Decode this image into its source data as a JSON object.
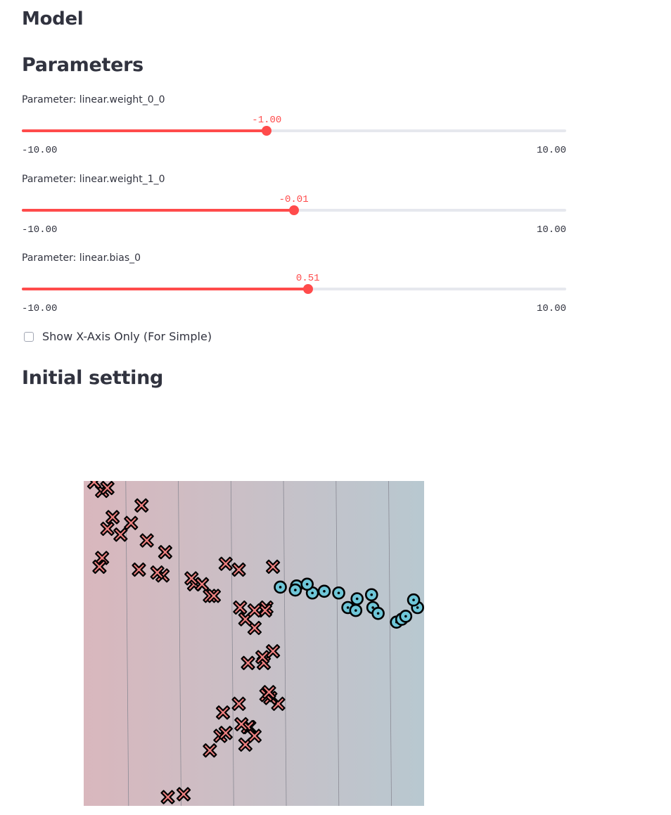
{
  "headings": {
    "model": "Model",
    "parameters": "Parameters",
    "initial_setting": "Initial setting"
  },
  "sliders": [
    {
      "label": "Parameter: linear.weight_0_0",
      "value": -1.0,
      "value_text": "-1.00",
      "min": -10.0,
      "min_text": "-10.00",
      "max": 10.0,
      "max_text": "10.00"
    },
    {
      "label": "Parameter: linear.weight_1_0",
      "value": -0.01,
      "value_text": "-0.01",
      "min": -10.0,
      "min_text": "-10.00",
      "max": 10.0,
      "max_text": "10.00"
    },
    {
      "label": "Parameter: linear.bias_0",
      "value": 0.51,
      "value_text": "0.51",
      "min": -10.0,
      "min_text": "-10.00",
      "max": 10.0,
      "max_text": "10.00"
    }
  ],
  "checkbox": {
    "label": "Show X-Axis Only (For Simple)",
    "checked": false
  },
  "colors": {
    "accent": "#ff4b4b",
    "track": "#e6e8ee",
    "class_x": "#f08080",
    "class_o": "#6ec6d8",
    "region_left": "#d9b7bd",
    "region_right": "#b8c8d0"
  },
  "chart_data": {
    "type": "scatter",
    "title": "",
    "xlabel": "",
    "ylabel": "",
    "grid": false,
    "legend": "none",
    "series": [
      {
        "marker": "x",
        "points": [
          [
            -4.4,
            -2.7
          ],
          [
            -3.8,
            -2.65
          ],
          [
            -1.3,
            -1.5
          ],
          [
            -1.35,
            -1.5
          ],
          [
            -2.4,
            -1.65
          ],
          [
            -2.2,
            -1.6
          ],
          [
            -2.8,
            -1.9
          ],
          [
            -2.3,
            -1.25
          ],
          [
            -1.7,
            -1.1
          ],
          [
            -1.45,
            -1.8
          ],
          [
            -1.1,
            -1.65
          ],
          [
            -1.6,
            -1.45
          ],
          [
            -0.2,
            -1.1
          ],
          [
            -0.5,
            -1.0
          ],
          [
            -0.65,
            -0.95
          ],
          [
            -0.55,
            -0.9
          ],
          [
            -0.75,
            -0.4
          ],
          [
            -0.8,
            -0.3
          ],
          [
            -0.4,
            -0.2
          ],
          [
            -1.1,
            0.2
          ],
          [
            -1.35,
            -0.4
          ],
          [
            -0.65,
            0.55
          ],
          [
            -0.7,
            0.5
          ],
          [
            -1.65,
            0.55
          ],
          [
            -2.2,
            1.3
          ],
          [
            -1.7,
            1.2
          ],
          [
            -0.4,
            1.25
          ],
          [
            -1.45,
            0.35
          ],
          [
            -1.1,
            0.5
          ],
          [
            -2.8,
            0.75
          ],
          [
            -2.65,
            0.75
          ],
          [
            -3.4,
            0.95
          ],
          [
            -3.1,
            0.95
          ],
          [
            -3.5,
            1.05
          ],
          [
            -4.6,
            1.1
          ],
          [
            -4.8,
            1.15
          ],
          [
            -5.5,
            1.2
          ],
          [
            -4.5,
            1.5
          ],
          [
            -5.2,
            1.7
          ],
          [
            -6.2,
            1.8
          ],
          [
            -6.9,
            1.4
          ],
          [
            -7.0,
            1.25
          ],
          [
            -6.7,
            1.9
          ],
          [
            -5.8,
            2.0
          ],
          [
            -6.5,
            2.1
          ],
          [
            -5.4,
            2.3
          ],
          [
            -6.9,
            2.55
          ],
          [
            -6.7,
            2.6
          ],
          [
            -7.2,
            2.7
          ]
        ]
      },
      {
        "marker": "o",
        "points": [
          [
            -0.12,
            0.9
          ],
          [
            0.5,
            0.92
          ],
          [
            0.45,
            0.85
          ],
          [
            2.1,
            0.8
          ],
          [
            2.8,
            0.7
          ],
          [
            2.45,
            0.55
          ],
          [
            2.75,
            0.5
          ],
          [
            3.4,
            0.55
          ],
          [
            3.6,
            0.45
          ],
          [
            4.3,
            0.3
          ],
          [
            4.5,
            0.35
          ],
          [
            4.65,
            0.4
          ],
          [
            5.1,
            0.55
          ],
          [
            4.95,
            0.68
          ],
          [
            3.35,
            0.77
          ],
          [
            1.55,
            0.83
          ],
          [
            1.1,
            0.8
          ],
          [
            0.9,
            0.95
          ]
        ]
      }
    ]
  }
}
